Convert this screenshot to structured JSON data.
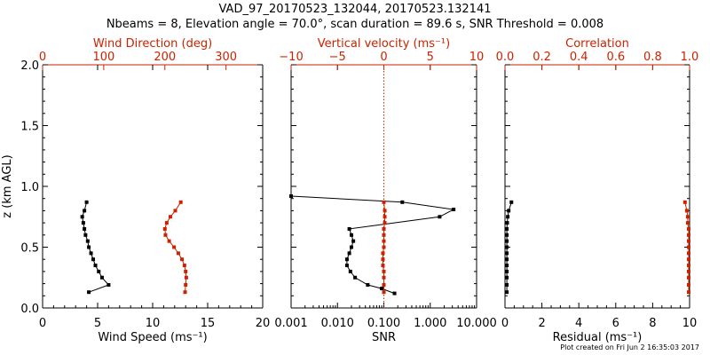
{
  "figure": {
    "title_line1": "VAD_97_20170523_132044, 20170523.132141",
    "title_line2": "Nbeams = 8, Elevation angle = 70.0°, scan duration = 89.6 s, SNR Threshold = 0.008",
    "footnote": "Plot created on Fri Jun  2 16:35:03 2017",
    "colors": {
      "axis": "#000000",
      "accent": "#cc2200",
      "marker": "#000000"
    }
  },
  "chart_data": [
    {
      "type": "line",
      "panel": "wind",
      "ylabel": "z (km AGL)",
      "ylim": [
        0.0,
        2.0
      ],
      "yticks": [
        "0.0",
        "0.5",
        "1.0",
        "1.5",
        "2.0"
      ],
      "ytick_values": [
        0.0,
        0.5,
        1.0,
        1.5,
        2.0
      ],
      "xlabel": "Wind Speed (ms⁻¹)",
      "xlim": [
        0,
        20
      ],
      "xticks": [
        "0",
        "5",
        "10",
        "15",
        "20"
      ],
      "xtick_values": [
        0,
        5,
        10,
        15,
        20
      ],
      "top_xlabel": "Wind Direction (deg)",
      "top_xlim": [
        0,
        360
      ],
      "top_xticks": [
        "0",
        "100",
        "200",
        "300"
      ],
      "top_xtick_values": [
        0,
        100,
        200,
        300
      ],
      "series": [
        {
          "axis": "bottom",
          "color": "#000000",
          "x": [
            4.0,
            3.8,
            3.6,
            3.7,
            3.8,
            3.9,
            4.1,
            4.2,
            4.4,
            4.6,
            4.8,
            5.1,
            5.4,
            6.0,
            4.2
          ],
          "y": [
            0.87,
            0.8,
            0.75,
            0.7,
            0.65,
            0.6,
            0.55,
            0.5,
            0.45,
            0.4,
            0.35,
            0.3,
            0.25,
            0.19,
            0.13
          ]
        },
        {
          "axis": "top",
          "color": "#cc2200",
          "x": [
            226,
            217,
            209,
            203,
            200,
            201,
            207,
            215,
            222,
            228,
            232,
            234,
            235,
            234,
            233
          ],
          "y": [
            0.87,
            0.8,
            0.75,
            0.7,
            0.65,
            0.6,
            0.55,
            0.5,
            0.45,
            0.4,
            0.35,
            0.3,
            0.25,
            0.19,
            0.13
          ]
        }
      ]
    },
    {
      "type": "line",
      "panel": "snr",
      "ylim": [
        0.0,
        2.0
      ],
      "xlabel": "SNR",
      "xscale": "log",
      "xlim": [
        0.001,
        10.0
      ],
      "xticks": [
        "0.001",
        "0.010",
        "0.100",
        "1.000",
        "10.000"
      ],
      "xtick_values": [
        0.001,
        0.01,
        0.1,
        1.0,
        10.0
      ],
      "top_xlabel": "Vertical velocity (ms⁻¹)",
      "top_xlim": [
        -10,
        10
      ],
      "top_xticks": [
        "−10",
        "−5",
        "0",
        "5",
        "10"
      ],
      "top_xtick_values": [
        -10,
        -5,
        0,
        5,
        10
      ],
      "reference_line": {
        "axis": "top",
        "x": 0,
        "style": "dotted",
        "color": "#cc2200"
      },
      "series": [
        {
          "axis": "bottom",
          "color": "#000000",
          "x": [
            0.001,
            0.25,
            3.2,
            1.6,
            0.018,
            0.02,
            0.022,
            0.02,
            0.018,
            0.016,
            0.016,
            0.019,
            0.024,
            0.045,
            0.09,
            0.17
          ],
          "y": [
            0.92,
            0.87,
            0.81,
            0.75,
            0.65,
            0.6,
            0.55,
            0.5,
            0.45,
            0.4,
            0.35,
            0.3,
            0.25,
            0.19,
            0.16,
            0.12
          ]
        },
        {
          "axis": "top",
          "color": "#cc2200",
          "x": [
            0.0,
            0.1,
            0.1,
            0.1,
            0.0,
            0.0,
            0.0,
            0.0,
            -0.1,
            -0.1,
            -0.1,
            0.0,
            0.0,
            0.0,
            0.0
          ],
          "y": [
            0.87,
            0.8,
            0.75,
            0.7,
            0.65,
            0.6,
            0.55,
            0.5,
            0.45,
            0.4,
            0.35,
            0.3,
            0.25,
            0.19,
            0.13
          ]
        }
      ]
    },
    {
      "type": "line",
      "panel": "residual",
      "ylim": [
        0.0,
        2.0
      ],
      "xlabel": "Residual (ms⁻¹)",
      "xlim": [
        0,
        10
      ],
      "xticks": [
        "0",
        "2",
        "4",
        "6",
        "8",
        "10"
      ],
      "xtick_values": [
        0,
        2,
        4,
        6,
        8,
        10
      ],
      "top_xlabel": "Correlation",
      "top_xlim": [
        0.0,
        1.0
      ],
      "top_xticks": [
        "0.0",
        "0.2",
        "0.4",
        "0.6",
        "0.8",
        "1.0"
      ],
      "top_xtick_values": [
        0.0,
        0.2,
        0.4,
        0.6,
        0.8,
        1.0
      ],
      "series": [
        {
          "axis": "bottom",
          "color": "#000000",
          "x": [
            0.35,
            0.2,
            0.15,
            0.12,
            0.1,
            0.1,
            0.1,
            0.1,
            0.1,
            0.1,
            0.1,
            0.1,
            0.1,
            0.1,
            0.1
          ],
          "y": [
            0.87,
            0.8,
            0.75,
            0.7,
            0.65,
            0.6,
            0.55,
            0.5,
            0.45,
            0.4,
            0.35,
            0.3,
            0.25,
            0.19,
            0.13
          ]
        },
        {
          "axis": "top",
          "color": "#cc2200",
          "x": [
            0.975,
            0.985,
            0.99,
            0.99,
            0.995,
            0.995,
            0.995,
            0.995,
            0.995,
            0.995,
            0.995,
            0.995,
            0.995,
            0.995,
            0.995
          ],
          "y": [
            0.87,
            0.8,
            0.75,
            0.7,
            0.65,
            0.6,
            0.55,
            0.5,
            0.45,
            0.4,
            0.35,
            0.3,
            0.25,
            0.19,
            0.13
          ]
        }
      ]
    }
  ]
}
